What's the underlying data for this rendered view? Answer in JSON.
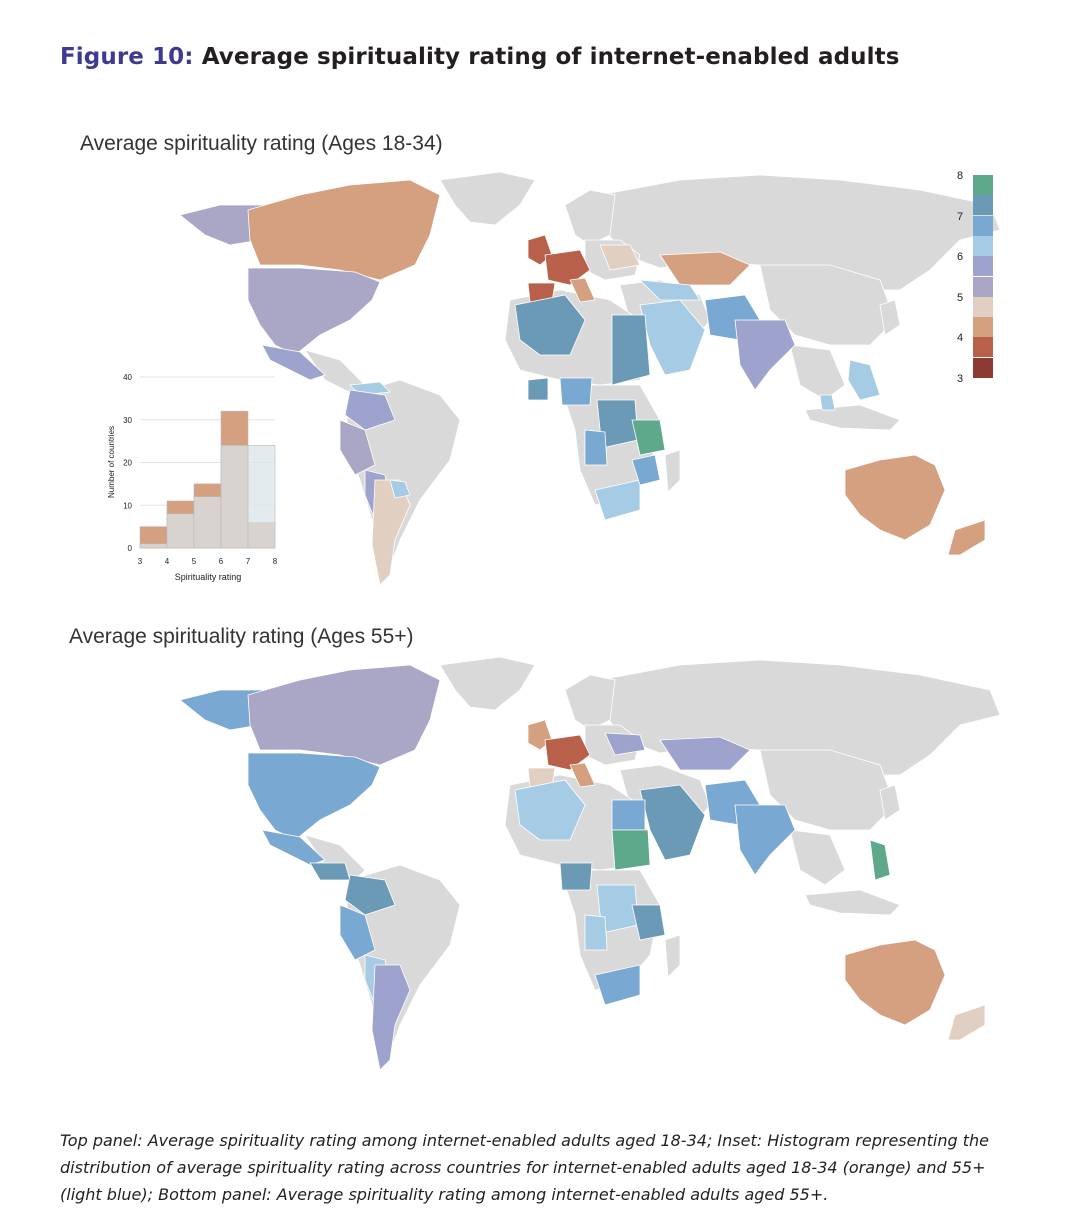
{
  "figure": {
    "label": "Figure 10",
    "separator": ":",
    "title": " Average spirituality rating of internet-enabled adults"
  },
  "panels": {
    "top": {
      "title": "Average spirituality rating (Ages 18-34)"
    },
    "bottom": {
      "title": "Average spirituality rating (Ages 55+)"
    }
  },
  "legend": {
    "ticks": [
      "8",
      "7",
      "6",
      "5",
      "4",
      "3"
    ],
    "colors": [
      "#5ea88c",
      "#6a9ab5",
      "#79a8d2",
      "#a6cbe4",
      "#9ea3cd",
      "#aaa6c6",
      "#e1d0c1",
      "#d4a080",
      "#b8604a",
      "#8c3a33"
    ]
  },
  "palette": {
    "no_data": "#d9d9d9",
    "green": "#5ea88c",
    "teal": "#6a9ab5",
    "blue": "#79a8d2",
    "light_blue": "#a6cbe4",
    "lavender": "#9ea3cd",
    "purple_gray": "#aaa6c6",
    "beige": "#e1d0c1",
    "tan": "#d4a080",
    "rust": "#b8604a",
    "dark_red": "#8c3a33"
  },
  "chart_data": {
    "type": "bar",
    "xlabel": "Spirituality rating",
    "ylabel": "Number of countries",
    "x_ticks": [
      "3",
      "4",
      "5",
      "6",
      "7",
      "8"
    ],
    "y_ticks": [
      "0",
      "10",
      "20",
      "30",
      "40"
    ],
    "ylim": [
      0,
      40
    ],
    "bins": [
      [
        3,
        4
      ],
      [
        4,
        5
      ],
      [
        5,
        6
      ],
      [
        6,
        7
      ],
      [
        7,
        8
      ]
    ],
    "series": [
      {
        "values": [
          5,
          11,
          15,
          32,
          6
        ],
        "color": "#d4a080"
      },
      {
        "values": [
          1,
          8,
          12,
          24,
          24
        ],
        "color": "#d9e4ea"
      }
    ]
  },
  "caption": {
    "text": "Top panel: Average spirituality rating among internet-enabled adults aged 18-34; Inset: Histogram representing the distribution of average spirituality rating across countries for internet-enabled adults aged 18-34 (orange) and 55+ (light blue); Bottom panel: Average spirituality rating among internet-enabled adults aged 55+."
  }
}
